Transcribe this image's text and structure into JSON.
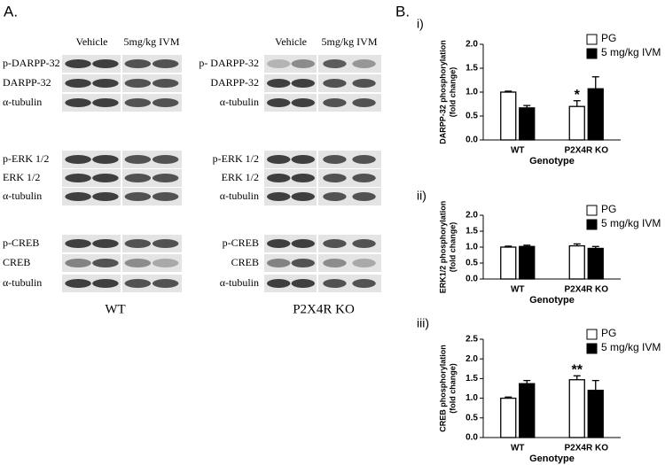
{
  "panel_a_label": "A.",
  "panel_b_label": "B.",
  "blots": [
    {
      "columns": [
        "Vehicle",
        "5mg/kg IVM"
      ],
      "rows": [
        "p-DARPP-32",
        "DARPP-32",
        "α-tubulin",
        "p-ERK 1/2",
        "ERK 1/2",
        "α-tubulin",
        "p-CREB",
        "CREB",
        "α-tubulin"
      ],
      "caption": "WT"
    },
    {
      "columns": [
        "Vehicle",
        "5mg/kg IVM"
      ],
      "rows": [
        "p- DARPP-32",
        "DARPP-32",
        "α-tubulin",
        "p-ERK 1/2",
        "ERK 1/2",
        "α-tubulin",
        "p-CREB",
        "CREB",
        "α-tubulin"
      ],
      "caption": "P2X4R KO"
    }
  ],
  "chart_data": [
    {
      "type": "bar",
      "panel": "i)",
      "ylabel": [
        "DARPP-32 phosphorylation",
        "(fold change)"
      ],
      "xlabel": "Genotype",
      "categories": [
        "WT",
        "P2X4R KO"
      ],
      "series": [
        {
          "name": "PG",
          "color": "#ffffff",
          "values": [
            1.0,
            0.7
          ],
          "errors": [
            0.02,
            0.12
          ]
        },
        {
          "name": "5 mg/kg IVM",
          "color": "#000000",
          "values": [
            0.67,
            1.07
          ],
          "errors": [
            0.05,
            0.25
          ]
        }
      ],
      "ylim": [
        0,
        2
      ],
      "yticks": [
        {
          "value": 0,
          "label": "0.0"
        },
        0.5,
        {
          "value": 1,
          "label": "1.0"
        },
        1.5,
        {
          "value": 2,
          "label": "2.0"
        }
      ],
      "annotation": "*"
    },
    {
      "type": "bar",
      "panel": "ii)",
      "ylabel": [
        "ERK1/2 phosphorylation",
        "(fold change)"
      ],
      "xlabel": "Genotype",
      "categories": [
        "WT",
        "P2X4R KO"
      ],
      "series": [
        {
          "name": "PG",
          "color": "#ffffff",
          "values": [
            1.0,
            1.04
          ],
          "errors": [
            0.03,
            0.06
          ]
        },
        {
          "name": "5 mg/kg IVM",
          "color": "#000000",
          "values": [
            1.02,
            0.96
          ],
          "errors": [
            0.04,
            0.06
          ]
        }
      ],
      "ylim": [
        0,
        2
      ],
      "yticks": [
        {
          "value": 0,
          "label": "0.0"
        },
        0.5,
        {
          "value": 1,
          "label": "1.0"
        },
        1.5,
        {
          "value": 2,
          "label": "2.0"
        }
      ]
    },
    {
      "type": "bar",
      "panel": "iii)",
      "ylabel": [
        "CREB phosphorylation",
        "(fold change)"
      ],
      "xlabel": "Genotype",
      "categories": [
        "WT",
        "P2X4R KO"
      ],
      "series": [
        {
          "name": "PG",
          "color": "#ffffff",
          "values": [
            1.0,
            1.47
          ],
          "errors": [
            0.03,
            0.1
          ]
        },
        {
          "name": "5 mg/kg IVM",
          "color": "#000000",
          "values": [
            1.37,
            1.2
          ],
          "errors": [
            0.08,
            0.25
          ]
        }
      ],
      "ylim": [
        0,
        2.5
      ],
      "yticks": [
        {
          "value": 0,
          "label": "0.0"
        },
        0.5,
        {
          "value": 1,
          "label": "1.0"
        },
        1.5,
        {
          "value": 2,
          "label": "2.0"
        },
        2.5
      ],
      "annotation": "**"
    }
  ]
}
